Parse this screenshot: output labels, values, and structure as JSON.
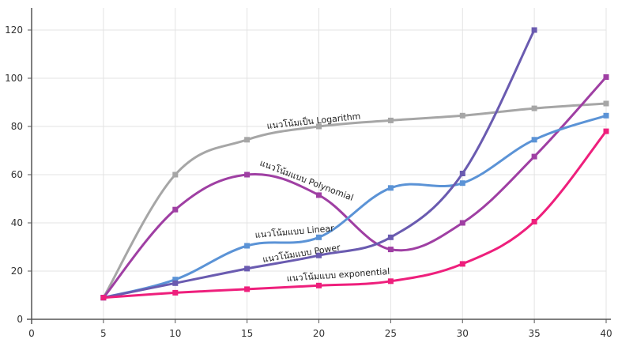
{
  "chart_data": {
    "type": "line",
    "xlim": [
      0,
      40
    ],
    "ylim": [
      0,
      125
    ],
    "x_ticks": [
      0,
      5,
      10,
      15,
      20,
      25,
      30,
      35,
      40
    ],
    "y_ticks": [
      0,
      20,
      40,
      60,
      80,
      100,
      120
    ],
    "grid": true,
    "series": [
      {
        "name": "แนวโน้มเป็น Logarithm",
        "color": "#a6a6a6",
        "x": [
          5,
          10,
          15,
          20,
          25,
          30,
          35,
          40
        ],
        "y": [
          9,
          60,
          74.5,
          80,
          82.5,
          84.5,
          87.5,
          89.5
        ]
      },
      {
        "name": "แนวโน้มแบบ Polynomial",
        "color": "#9f3fa3",
        "x": [
          5,
          10,
          15,
          20,
          25,
          30,
          35,
          40
        ],
        "y": [
          9,
          45.5,
          60,
          51.5,
          29,
          40,
          67.5,
          100.5
        ]
      },
      {
        "name": "แนวโน้มแบบ Linear",
        "color": "#5b93d6",
        "x": [
          5,
          10,
          15,
          20,
          25,
          30,
          35,
          40
        ],
        "y": [
          9,
          16.5,
          30.5,
          34,
          54.5,
          56.5,
          74.5,
          84.5
        ]
      },
      {
        "name": "แนวโน้มแบบ Power",
        "color": "#6a5bb0",
        "x": [
          5,
          10,
          15,
          20,
          25,
          30,
          35
        ],
        "y": [
          9,
          15,
          21,
          26.5,
          34,
          60.5,
          120
        ]
      },
      {
        "name": "แนวโน้มแบบ exponential",
        "color": "#ee1f7c",
        "x": [
          5,
          10,
          15,
          20,
          25,
          30,
          35,
          40
        ],
        "y": [
          9,
          11,
          12.5,
          14,
          15.8,
          23,
          40.5,
          78
        ]
      }
    ]
  }
}
